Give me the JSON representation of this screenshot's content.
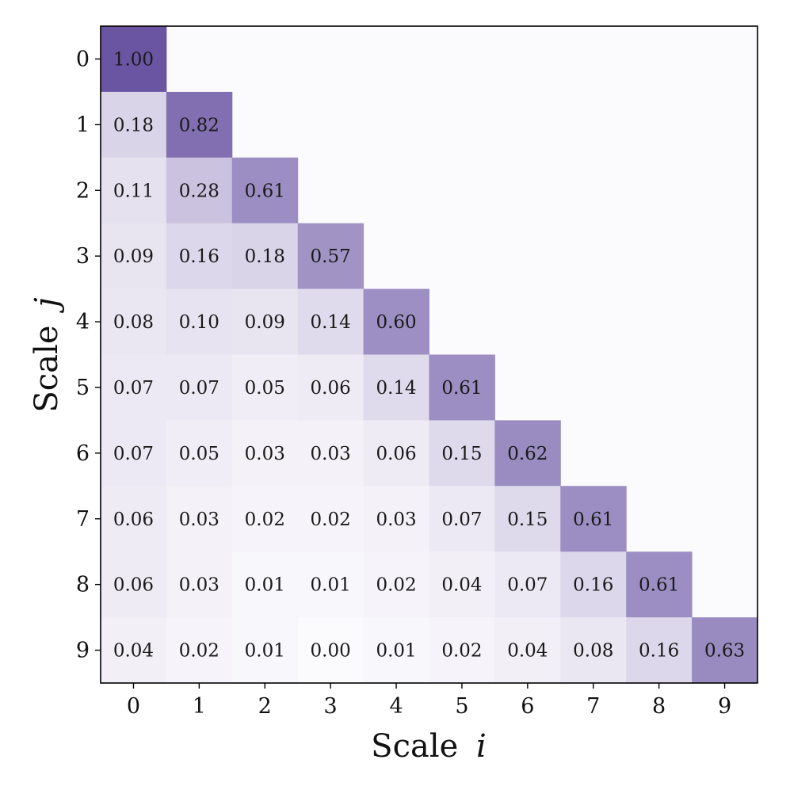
{
  "chart_data": {
    "type": "heatmap",
    "title": "",
    "xlabel": "Scale",
    "xlabel_var": "i",
    "ylabel": "Scale",
    "ylabel_var": "j",
    "x_categories": [
      "0",
      "1",
      "2",
      "3",
      "4",
      "5",
      "6",
      "7",
      "8",
      "9"
    ],
    "y_categories": [
      "0",
      "1",
      "2",
      "3",
      "4",
      "5",
      "6",
      "7",
      "8",
      "9"
    ],
    "value_range": [
      0,
      1
    ],
    "colormap": {
      "low": "#fbfafd",
      "high": "#6a55a3"
    },
    "frame_color": "#000000",
    "rows": [
      [
        "1.00"
      ],
      [
        "0.18",
        "0.82"
      ],
      [
        "0.11",
        "0.28",
        "0.61"
      ],
      [
        "0.09",
        "0.16",
        "0.18",
        "0.57"
      ],
      [
        "0.08",
        "0.10",
        "0.09",
        "0.14",
        "0.60"
      ],
      [
        "0.07",
        "0.07",
        "0.05",
        "0.06",
        "0.14",
        "0.61"
      ],
      [
        "0.07",
        "0.05",
        "0.03",
        "0.03",
        "0.06",
        "0.15",
        "0.62"
      ],
      [
        "0.06",
        "0.03",
        "0.02",
        "0.02",
        "0.03",
        "0.07",
        "0.15",
        "0.61"
      ],
      [
        "0.06",
        "0.03",
        "0.01",
        "0.01",
        "0.02",
        "0.04",
        "0.07",
        "0.16",
        "0.61"
      ],
      [
        "0.04",
        "0.02",
        "0.01",
        "0.00",
        "0.01",
        "0.02",
        "0.04",
        "0.08",
        "0.16",
        "0.63"
      ]
    ]
  }
}
